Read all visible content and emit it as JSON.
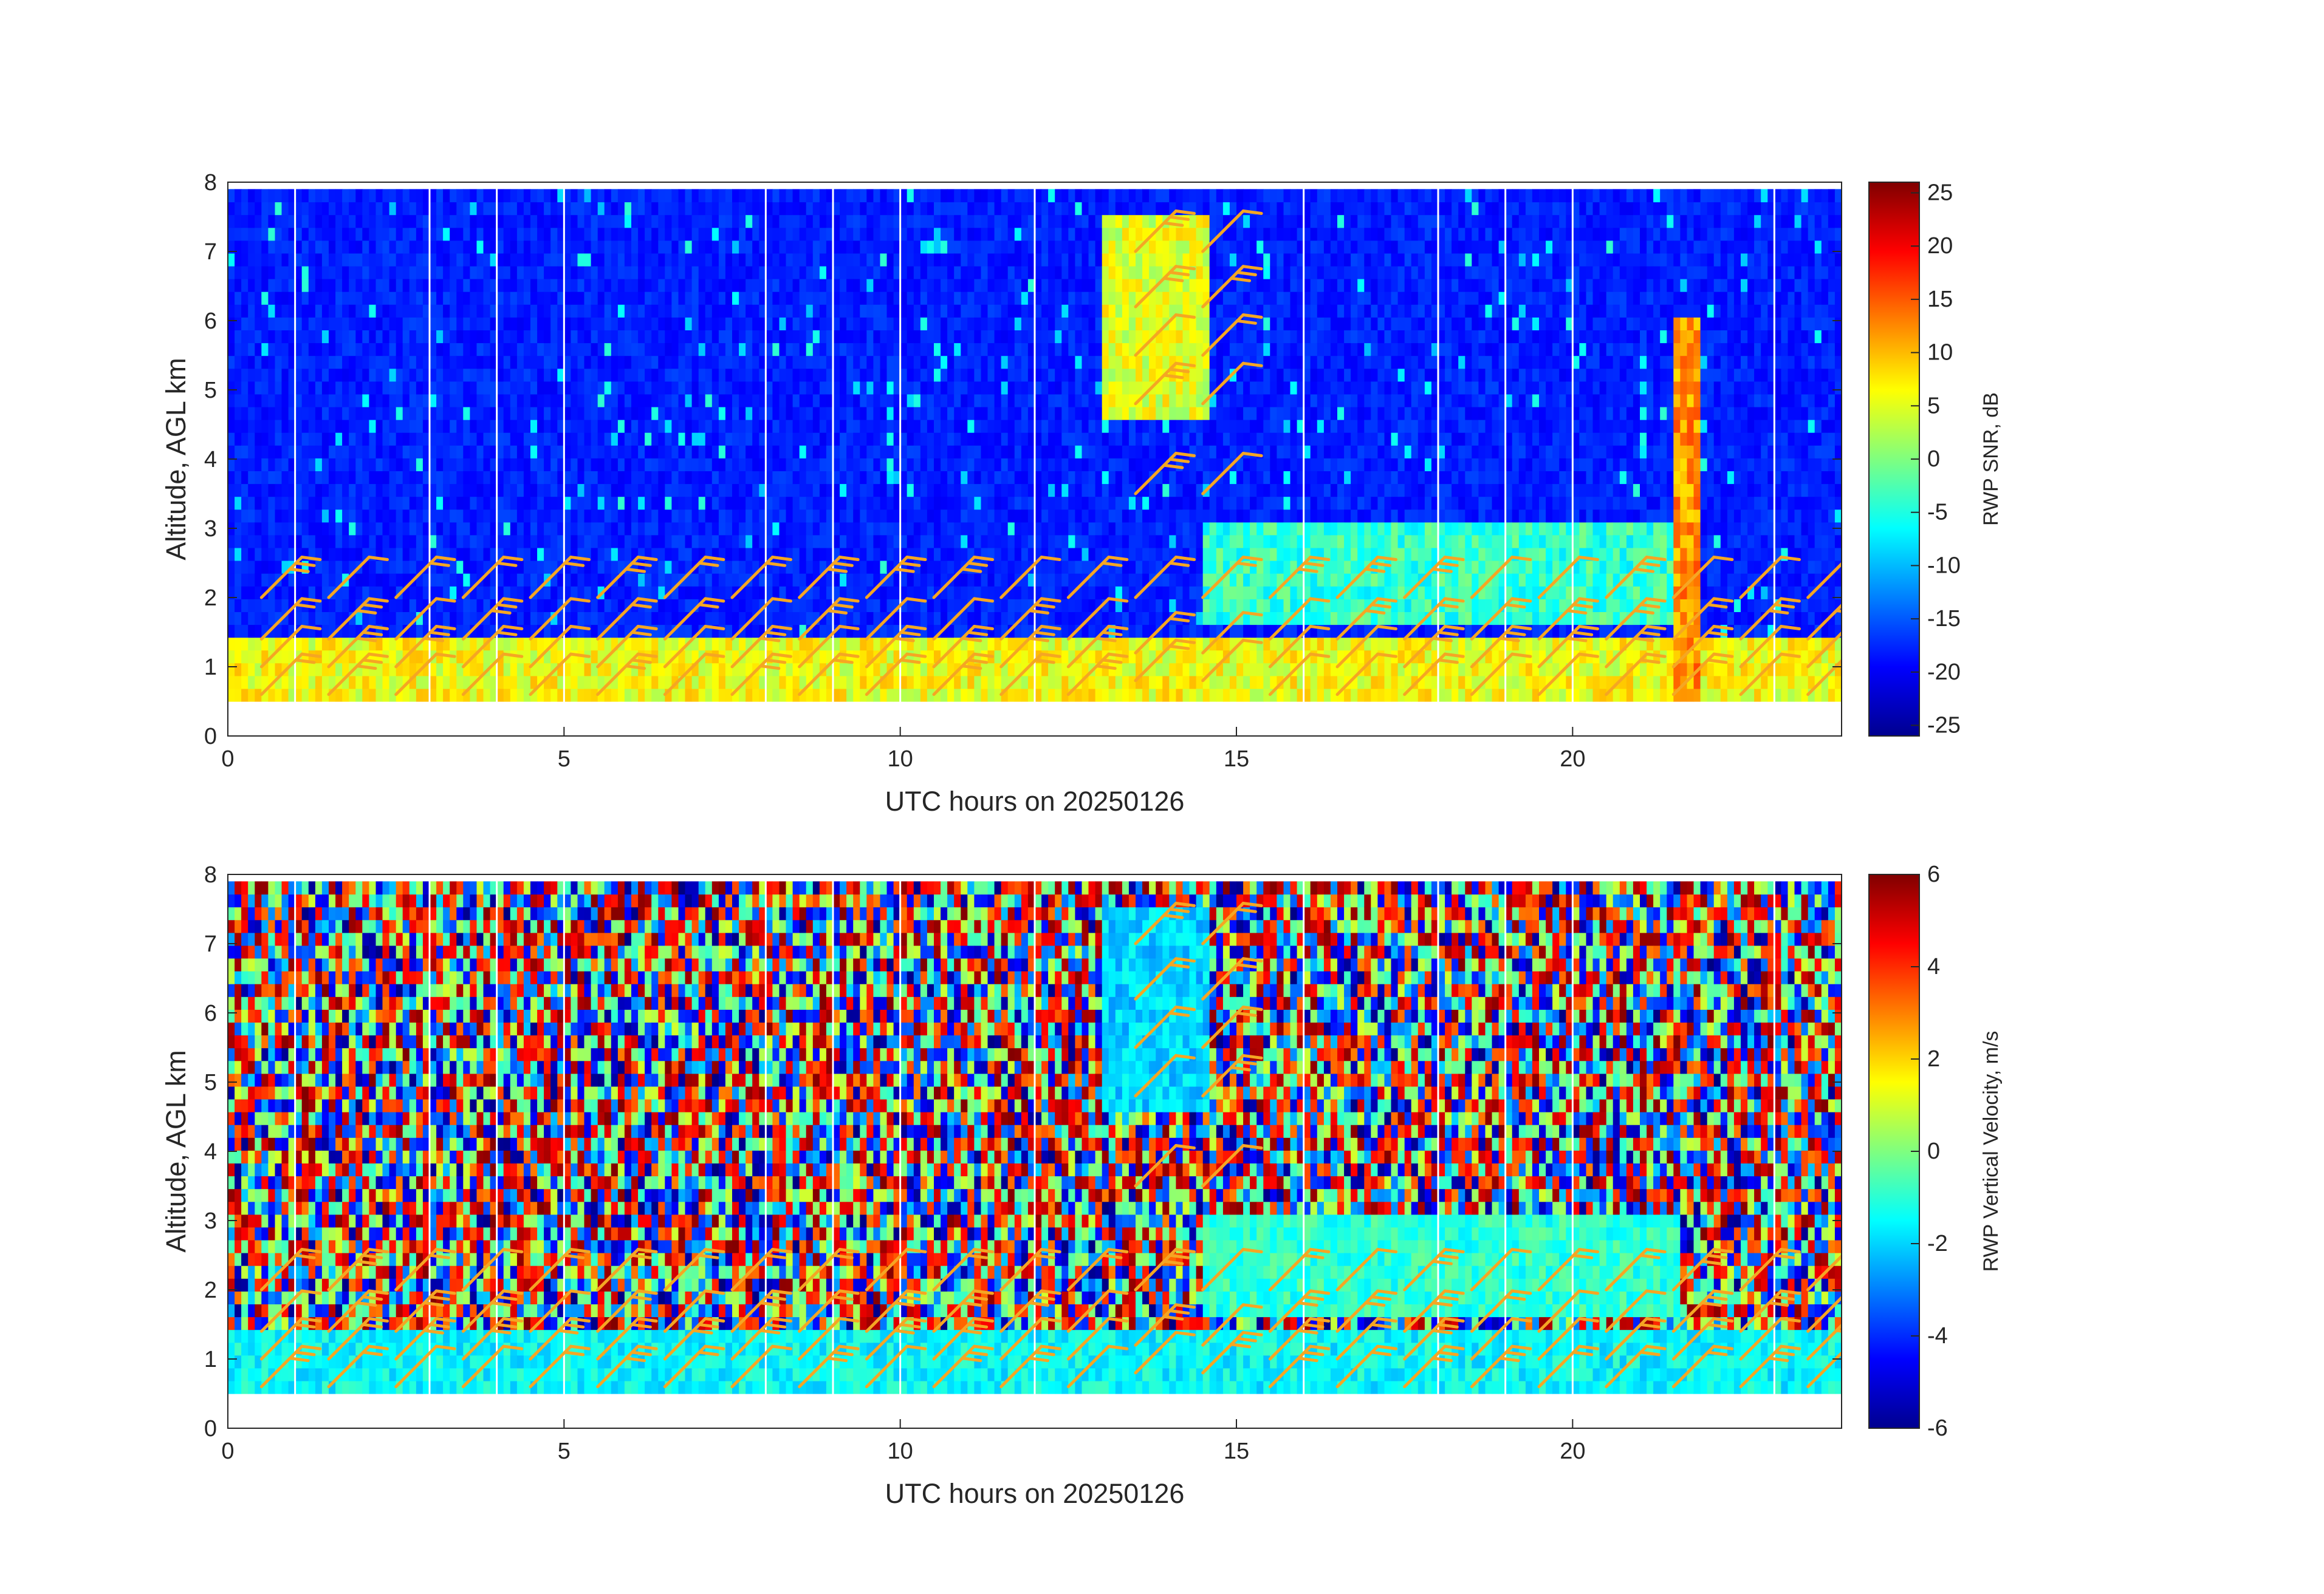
{
  "chart_data": [
    {
      "type": "heatmap",
      "title": "",
      "xlabel": "UTC hours on 20250126",
      "ylabel": "Altitude, AGL km",
      "xlim": [
        0,
        24
      ],
      "ylim": [
        0,
        8
      ],
      "xticks": [
        0,
        5,
        10,
        15,
        20
      ],
      "yticks": [
        0,
        1,
        2,
        3,
        4,
        5,
        6,
        7,
        8
      ],
      "colorbar": {
        "label": "RWP SNR, dB",
        "ticks": [
          25,
          20,
          15,
          10,
          5,
          0,
          -5,
          -10,
          -15,
          -20,
          -25
        ],
        "range": [
          -26,
          26
        ],
        "colormap": "jet"
      },
      "layers": [
        {
          "name": "boundary-layer",
          "x_range": [
            0,
            24
          ],
          "alt_range": [
            0.5,
            1.4
          ],
          "value": 6
        },
        {
          "name": "upper-cloud",
          "x_range": [
            13.0,
            14.5
          ],
          "alt_range": [
            4.5,
            7.5
          ],
          "value": 5
        },
        {
          "name": "sloping-layer",
          "x_range": [
            14.5,
            21.5
          ],
          "alt_range": [
            1.6,
            3.0
          ],
          "value": -4
        },
        {
          "name": "precip-column",
          "x_range": [
            21.5,
            21.8
          ],
          "alt_range": [
            0.2,
            6.0
          ],
          "value": 12
        }
      ],
      "wind_barb_color": "#f5a623"
    },
    {
      "type": "heatmap",
      "title": "",
      "xlabel": "UTC hours on 20250126",
      "ylabel": "Altitude, AGL km",
      "xlim": [
        0,
        24
      ],
      "ylim": [
        0,
        8
      ],
      "xticks": [
        0,
        5,
        10,
        15,
        20
      ],
      "yticks": [
        0,
        1,
        2,
        3,
        4,
        5,
        6,
        7,
        8
      ],
      "colorbar": {
        "label": "RWP Vertical Velocity, m/s",
        "ticks": [
          6,
          4,
          2,
          0,
          -2,
          -4,
          -6
        ],
        "range": [
          -6,
          6
        ],
        "colormap": "jet"
      },
      "layers": [
        {
          "name": "boundary-layer",
          "x_range": [
            0,
            24
          ],
          "alt_range": [
            0.5,
            1.4
          ],
          "value": -1.5
        },
        {
          "name": "upper-cloud",
          "x_range": [
            13.0,
            14.5
          ],
          "alt_range": [
            4.5,
            7.5
          ],
          "value": -2
        },
        {
          "name": "sloping-layer",
          "x_range": [
            14.5,
            21.5
          ],
          "alt_range": [
            1.6,
            3.0
          ],
          "value": -1
        }
      ],
      "wind_barb_color": "#f5a623"
    }
  ]
}
